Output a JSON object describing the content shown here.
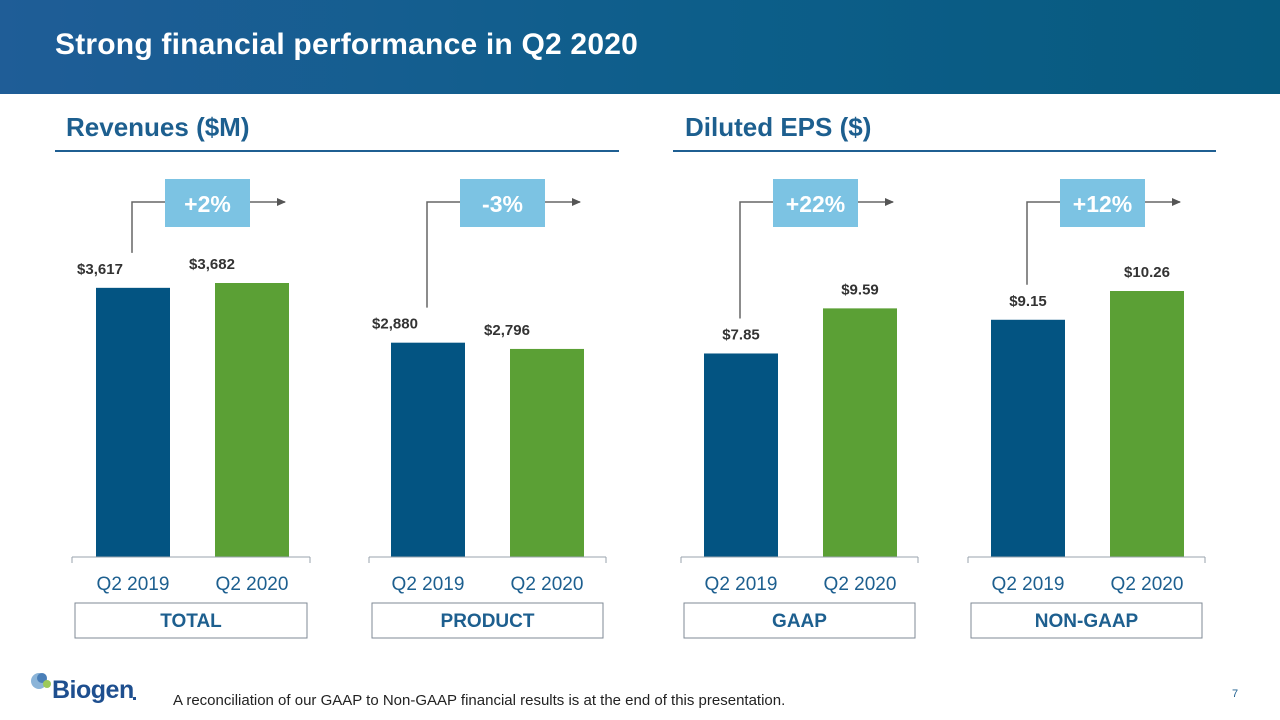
{
  "header": {
    "title": "Strong financial performance in Q2 2020"
  },
  "sections": [
    {
      "title": "Revenues ($M)"
    },
    {
      "title": "Diluted EPS ($)"
    }
  ],
  "colors": {
    "q2_2019": "#035482",
    "q2_2020": "#5ba035",
    "change_box": "#7cc3e3",
    "header": "#0d5e8a",
    "accent_text": "#1d5f8f"
  },
  "chart_data": [
    {
      "type": "bar",
      "group": "TOTAL",
      "units": "$M",
      "categories": [
        "Q2 2019",
        "Q2 2020"
      ],
      "values": [
        3617,
        3682
      ],
      "value_labels": [
        "$3,617",
        "$3,682"
      ],
      "change": "+2%"
    },
    {
      "type": "bar",
      "group": "PRODUCT",
      "units": "$M",
      "categories": [
        "Q2 2019",
        "Q2 2020"
      ],
      "values": [
        2880,
        2796
      ],
      "value_labels": [
        "$2,880",
        "$2,796"
      ],
      "change": "-3%"
    },
    {
      "type": "bar",
      "group": "GAAP",
      "units": "$",
      "categories": [
        "Q2 2019",
        "Q2 2020"
      ],
      "values": [
        7.85,
        9.59
      ],
      "value_labels": [
        "$7.85",
        "$9.59"
      ],
      "change": "+22%"
    },
    {
      "type": "bar",
      "group": "NON-GAAP",
      "units": "$",
      "categories": [
        "Q2 2019",
        "Q2 2020"
      ],
      "values": [
        9.15,
        10.26
      ],
      "value_labels": [
        "$9.15",
        "$10.26"
      ],
      "change": "+12%"
    }
  ],
  "logo": {
    "text": "Biogen"
  },
  "footer": {
    "note": "A reconciliation of our GAAP to Non-GAAP financial results is at the end of this presentation.",
    "page_number": "7"
  }
}
